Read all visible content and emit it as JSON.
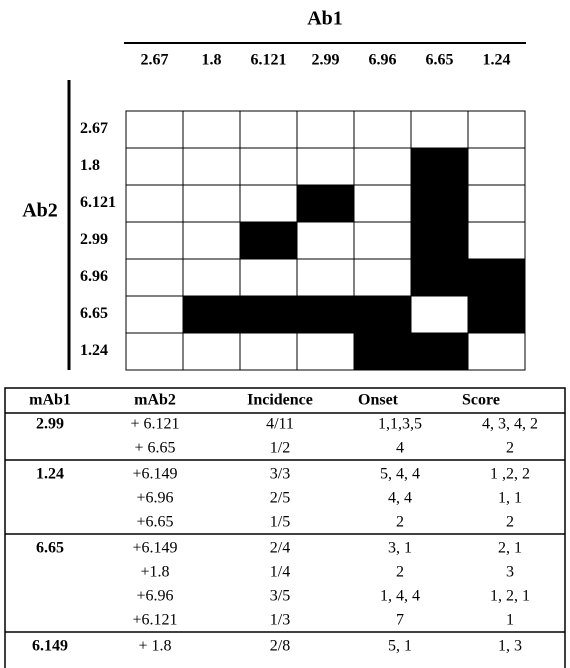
{
  "grid": {
    "col_title": "Ab1",
    "row_title": "Ab2",
    "columns": [
      "2.67",
      "1.8",
      "6.121",
      "2.99",
      "6.96",
      "6.65",
      "1.24"
    ],
    "rows": [
      "2.67",
      "1.8",
      "6.121",
      "2.99",
      "6.96",
      "6.65",
      "1.24"
    ],
    "cells": [
      [
        0,
        0,
        0,
        0,
        0,
        0,
        0
      ],
      [
        0,
        0,
        0,
        0,
        0,
        1,
        0
      ],
      [
        0,
        0,
        0,
        1,
        0,
        1,
        0
      ],
      [
        0,
        0,
        1,
        0,
        0,
        1,
        0
      ],
      [
        0,
        0,
        0,
        0,
        0,
        1,
        1
      ],
      [
        0,
        1,
        1,
        1,
        1,
        0,
        1
      ],
      [
        0,
        0,
        0,
        0,
        1,
        1,
        0
      ]
    ]
  },
  "table": {
    "header": [
      "mAb1",
      "mAb2",
      "Incidence",
      "Onset",
      "Score"
    ],
    "groups": [
      {
        "mAb1": "2.99",
        "rows": [
          [
            "+ 6.121",
            "4/11",
            "1,1,3,5",
            "4, 3, 4, 2"
          ],
          [
            "+ 6.65",
            "1/2",
            "4",
            "2"
          ]
        ]
      },
      {
        "mAb1": "1.24",
        "rows": [
          [
            "+6.149",
            "3/3",
            "5, 4, 4",
            "1 ,2, 2"
          ],
          [
            "+6.96",
            "2/5",
            "4, 4",
            "1, 1"
          ],
          [
            "+6.65",
            "1/5",
            "2",
            "2"
          ]
        ]
      },
      {
        "mAb1": "6.65",
        "rows": [
          [
            "+6.149",
            "2/4",
            "3, 1",
            "2, 1"
          ],
          [
            "+1.8",
            "1/4",
            "2",
            "3"
          ],
          [
            "+6.96",
            "3/5",
            "1, 4, 4",
            "1, 2, 1"
          ],
          [
            "+6.121",
            "1/3",
            "7",
            "1"
          ]
        ]
      },
      {
        "mAb1": "6.149",
        "rows": [
          [
            "+ 1.8",
            "2/8",
            "5, 1",
            "1, 3"
          ]
        ]
      }
    ]
  }
}
